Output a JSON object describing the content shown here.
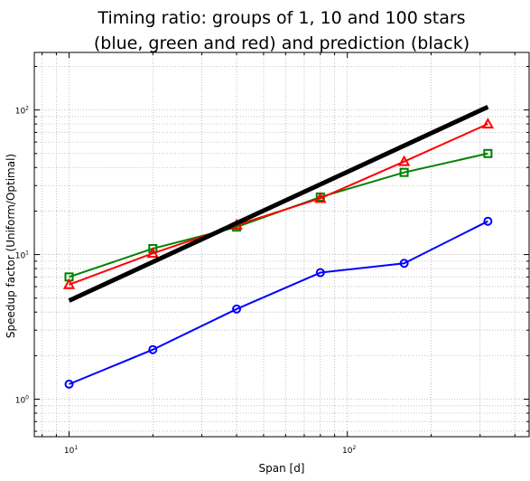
{
  "chart_data": {
    "type": "line",
    "title_lines": [
      "Timing ratio: groups of 1, 10 and 100 stars",
      "(blue, green and red) and prediction (black)"
    ],
    "xlabel": "Span [d]",
    "ylabel": "Speedup factor (Uniform/Optimal)",
    "x_scale": "log",
    "y_scale": "log",
    "xlim": [
      7.5,
      450
    ],
    "ylim": [
      0.55,
      250
    ],
    "grid": true,
    "x_ticks": [
      {
        "value": 10,
        "base": "10",
        "exp": "1"
      },
      {
        "value": 100,
        "base": "10",
        "exp": "2"
      }
    ],
    "y_ticks": [
      {
        "value": 1,
        "base": "10",
        "exp": "0"
      },
      {
        "value": 10,
        "base": "10",
        "exp": "1"
      },
      {
        "value": 100,
        "base": "10",
        "exp": "2"
      }
    ],
    "series": [
      {
        "color": "#0000ff",
        "marker": "circle",
        "stroke_width": 2,
        "x": [
          10,
          20,
          40,
          80,
          160,
          320
        ],
        "y": [
          1.27,
          2.2,
          4.2,
          7.5,
          8.7,
          17
        ]
      },
      {
        "color": "#008000",
        "marker": "square",
        "stroke_width": 2,
        "x": [
          10,
          20,
          40,
          80,
          160,
          320
        ],
        "y": [
          7.0,
          11.0,
          15.5,
          25,
          37,
          50
        ]
      },
      {
        "color": "#ff0000",
        "marker": "triangle",
        "stroke_width": 2,
        "x": [
          10,
          20,
          40,
          80,
          160,
          320
        ],
        "y": [
          6.2,
          10.2,
          16.0,
          24.5,
          44,
          80
        ]
      },
      {
        "color": "#000000",
        "marker": "none",
        "stroke_width": 5,
        "x": [
          10,
          320
        ],
        "y": [
          4.8,
          105
        ]
      }
    ]
  }
}
